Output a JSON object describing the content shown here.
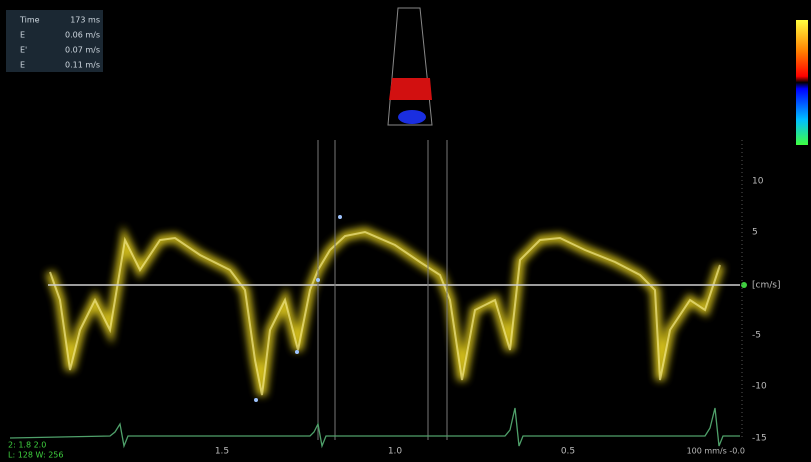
{
  "measurements": {
    "rows": [
      {
        "label": "Time",
        "value": "173 ms"
      },
      {
        "label": "E",
        "value": "0.06 m/s"
      },
      {
        "label": "E'",
        "value": "0.07 m/s"
      },
      {
        "label": "E",
        "value": "0.11 m/s"
      }
    ]
  },
  "velocity_scale": {
    "labels": [
      "10",
      "5",
      "[cm/s]",
      "-5",
      "-10",
      "-15"
    ]
  },
  "time_scale": {
    "labels": [
      "1.5",
      "1.0",
      "0.5",
      "100 mm/s -0.0"
    ]
  },
  "info": {
    "line1": "2: 1.8 2.0",
    "line2": "L: 128 W: 256"
  }
}
